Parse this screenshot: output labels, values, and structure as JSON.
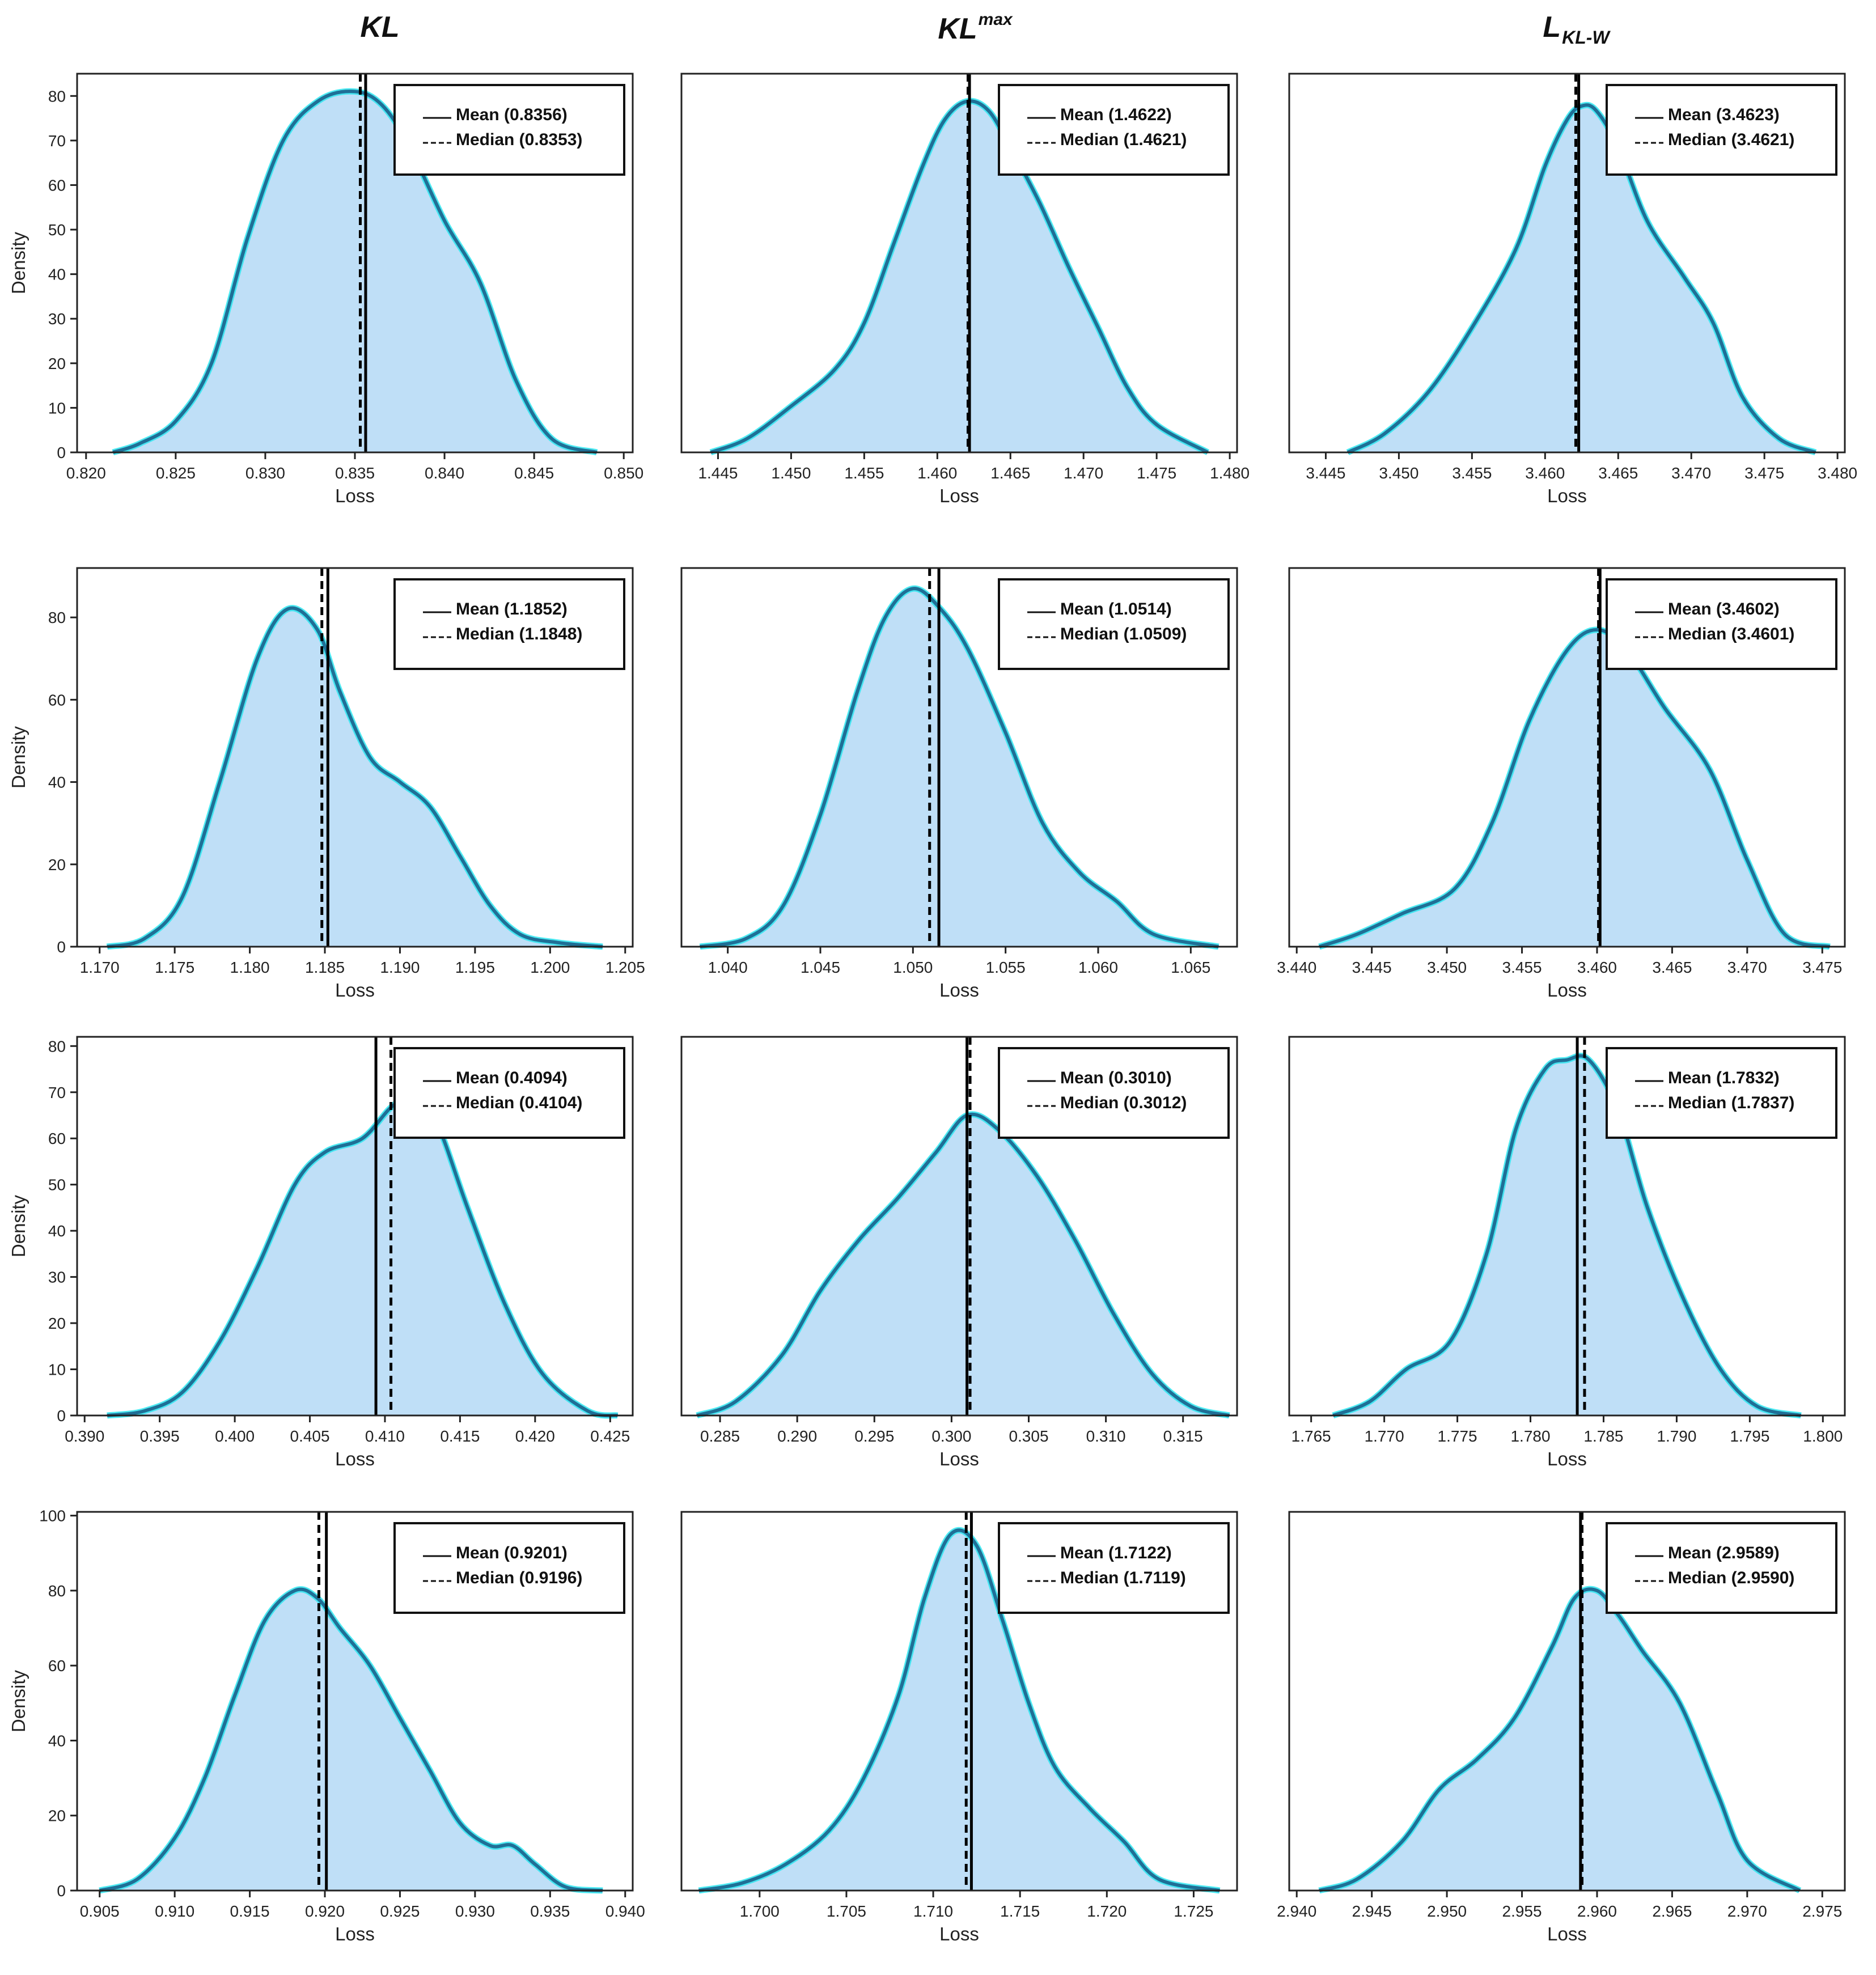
{
  "column_titles": [
    {
      "main": "KL",
      "sup": "",
      "sub": ""
    },
    {
      "main": "KL",
      "sup": "max",
      "sub": ""
    },
    {
      "main": "L",
      "sup": "",
      "sub": "KL-W"
    }
  ],
  "colors": {
    "fill": "#bfdff7",
    "curve": "#1f6f96",
    "curve_glow": "#2ee6f0",
    "mean_line": "#000000",
    "median_line": "#000000",
    "inner_line": "#1428c8"
  },
  "chart_data": [
    {
      "type": "area",
      "row": 0,
      "col": 0,
      "title": "KL",
      "xlabel": "Loss",
      "ylabel": "Density",
      "xlim": [
        0.8195,
        0.8505
      ],
      "ylim": [
        0,
        85
      ],
      "xticks": [
        0.82,
        0.825,
        0.83,
        0.835,
        0.84,
        0.845,
        0.85
      ],
      "xtick_labels": [
        "0.820",
        "0.825",
        "0.830",
        "0.835",
        "0.840",
        "0.845",
        "0.850"
      ],
      "yticks": [
        0,
        10,
        20,
        30,
        40,
        50,
        60,
        70,
        80
      ],
      "ytick_labels": [
        "0",
        "10",
        "20",
        "30",
        "40",
        "50",
        "60",
        "70",
        "80"
      ],
      "mean": 0.8356,
      "median": 0.8353,
      "legend": {
        "mean_label": "Mean (0.8356)",
        "median_label": "Median (0.8353)"
      },
      "x": [
        0.8215,
        0.823,
        0.825,
        0.827,
        0.829,
        0.831,
        0.833,
        0.835,
        0.8365,
        0.838,
        0.84,
        0.842,
        0.844,
        0.846,
        0.8485
      ],
      "y": [
        0,
        2,
        7,
        20,
        48,
        70,
        79,
        81,
        78,
        69,
        52,
        38,
        16,
        3,
        0
      ]
    },
    {
      "type": "area",
      "row": 0,
      "col": 1,
      "title": "KLmax",
      "xlabel": "Loss",
      "ylabel": "",
      "xlim": [
        1.4425,
        1.4805
      ],
      "ylim": [
        0,
        82
      ],
      "xticks": [
        1.445,
        1.45,
        1.455,
        1.46,
        1.465,
        1.47,
        1.475,
        1.48
      ],
      "xtick_labels": [
        "1.445",
        "1.450",
        "1.455",
        "1.460",
        "1.465",
        "1.470",
        "1.475",
        "1.480"
      ],
      "yticks": [],
      "ytick_labels": [],
      "mean": 1.4622,
      "median": 1.4621,
      "legend": {
        "mean_label": "Mean (1.4622)",
        "median_label": "Median (1.4621)"
      },
      "x": [
        1.4445,
        1.447,
        1.45,
        1.453,
        1.455,
        1.457,
        1.459,
        1.4605,
        1.462,
        1.4635,
        1.465,
        1.467,
        1.469,
        1.471,
        1.473,
        1.475,
        1.4785
      ],
      "y": [
        0,
        3,
        10,
        18,
        28,
        45,
        62,
        72,
        76,
        74,
        66,
        54,
        40,
        27,
        14,
        6,
        0
      ]
    },
    {
      "type": "area",
      "row": 0,
      "col": 2,
      "title": "LKL-W",
      "xlabel": "Loss",
      "ylabel": "",
      "xlim": [
        3.4425,
        3.4805
      ],
      "ylim": [
        0,
        82
      ],
      "xticks": [
        3.445,
        3.45,
        3.455,
        3.46,
        3.465,
        3.47,
        3.475,
        3.48
      ],
      "xtick_labels": [
        "3.445",
        "3.450",
        "3.455",
        "3.460",
        "3.465",
        "3.470",
        "3.475",
        "3.480"
      ],
      "yticks": [],
      "ytick_labels": [],
      "mean": 3.4623,
      "median": 3.4621,
      "legend": {
        "mean_label": "Mean (3.4623)",
        "median_label": "Median (3.4621)"
      },
      "x": [
        3.4465,
        3.449,
        3.452,
        3.455,
        3.458,
        3.46,
        3.4615,
        3.4625,
        3.4635,
        3.465,
        3.467,
        3.4695,
        3.4715,
        3.4735,
        3.476,
        3.4785
      ],
      "y": [
        0,
        4,
        13,
        27,
        44,
        62,
        72,
        75,
        74,
        66,
        50,
        38,
        28,
        12,
        3,
        0
      ]
    },
    {
      "type": "area",
      "row": 1,
      "col": 0,
      "title": "",
      "xlabel": "Loss",
      "ylabel": "Density",
      "xlim": [
        1.1685,
        1.2055
      ],
      "ylim": [
        0,
        92
      ],
      "xticks": [
        1.17,
        1.175,
        1.18,
        1.185,
        1.19,
        1.195,
        1.2,
        1.205
      ],
      "xtick_labels": [
        "1.170",
        "1.175",
        "1.180",
        "1.185",
        "1.190",
        "1.195",
        "1.200",
        "1.205"
      ],
      "yticks": [
        0,
        20,
        40,
        60,
        80
      ],
      "ytick_labels": [
        "0",
        "20",
        "40",
        "60",
        "80"
      ],
      "mean": 1.1852,
      "median": 1.1848,
      "legend": {
        "mean_label": "Mean (1.1852)",
        "median_label": "Median (1.1848)"
      },
      "x": [
        1.1705,
        1.173,
        1.1755,
        1.178,
        1.1805,
        1.1825,
        1.1845,
        1.186,
        1.188,
        1.19,
        1.192,
        1.194,
        1.196,
        1.198,
        1.2005,
        1.2035
      ],
      "y": [
        0,
        2,
        12,
        40,
        70,
        82,
        77,
        62,
        46,
        40,
        34,
        22,
        10,
        3,
        1,
        0
      ]
    },
    {
      "type": "area",
      "row": 1,
      "col": 1,
      "title": "",
      "xlabel": "Loss",
      "ylabel": "",
      "xlim": [
        1.0375,
        1.0675
      ],
      "ylim": [
        0,
        92
      ],
      "xticks": [
        1.04,
        1.045,
        1.05,
        1.055,
        1.06,
        1.065
      ],
      "xtick_labels": [
        "1.040",
        "1.045",
        "1.050",
        "1.055",
        "1.060",
        "1.065"
      ],
      "yticks": [],
      "ytick_labels": [],
      "mean": 1.0514,
      "median": 1.0509,
      "legend": {
        "mean_label": "Mean (1.0514)",
        "median_label": "Median (1.0509)"
      },
      "x": [
        1.0385,
        1.041,
        1.043,
        1.045,
        1.047,
        1.0485,
        1.05,
        1.0515,
        1.053,
        1.055,
        1.057,
        1.059,
        1.061,
        1.063,
        1.0665
      ],
      "y": [
        0,
        2,
        10,
        32,
        62,
        80,
        87,
        82,
        72,
        52,
        30,
        18,
        11,
        3,
        0
      ]
    },
    {
      "type": "area",
      "row": 1,
      "col": 2,
      "title": "",
      "xlabel": "Loss",
      "ylabel": "",
      "xlim": [
        3.4395,
        3.4765
      ],
      "ylim": [
        0,
        92
      ],
      "xticks": [
        3.44,
        3.445,
        3.45,
        3.455,
        3.46,
        3.465,
        3.47,
        3.475
      ],
      "xtick_labels": [
        "3.440",
        "3.445",
        "3.450",
        "3.455",
        "3.460",
        "3.465",
        "3.470",
        "3.475"
      ],
      "yticks": [],
      "ytick_labels": [],
      "mean": 3.4602,
      "median": 3.4601,
      "legend": {
        "mean_label": "Mean (3.4602)",
        "median_label": "Median (3.4601)"
      },
      "x": [
        3.4415,
        3.444,
        3.447,
        3.4505,
        3.453,
        3.4555,
        3.458,
        3.46,
        3.462,
        3.4645,
        3.4675,
        3.47,
        3.4725,
        3.4755
      ],
      "y": [
        0,
        3,
        8,
        14,
        30,
        55,
        72,
        77,
        72,
        58,
        43,
        21,
        3,
        0
      ]
    },
    {
      "type": "area",
      "row": 2,
      "col": 0,
      "title": "",
      "xlabel": "Loss",
      "ylabel": "Density",
      "xlim": [
        0.3895,
        0.4265
      ],
      "ylim": [
        0,
        82
      ],
      "xticks": [
        0.39,
        0.395,
        0.4,
        0.405,
        0.41,
        0.415,
        0.42,
        0.425
      ],
      "xtick_labels": [
        "0.390",
        "0.395",
        "0.400",
        "0.405",
        "0.410",
        "0.415",
        "0.420",
        "0.425"
      ],
      "yticks": [
        0,
        10,
        20,
        30,
        40,
        50,
        60,
        70,
        80
      ],
      "ytick_labels": [
        "0",
        "10",
        "20",
        "30",
        "40",
        "50",
        "60",
        "70",
        "80"
      ],
      "mean": 0.4094,
      "median": 0.4104,
      "legend": {
        "mean_label": "Mean (0.4094)",
        "median_label": "Median (0.4104)"
      },
      "x": [
        0.3915,
        0.394,
        0.3965,
        0.399,
        0.4015,
        0.404,
        0.406,
        0.4085,
        0.4105,
        0.412,
        0.4135,
        0.4155,
        0.418,
        0.4205,
        0.4235,
        0.4255
      ],
      "y": [
        0,
        1,
        5,
        16,
        32,
        50,
        57,
        60,
        67,
        69,
        63,
        45,
        24,
        9,
        1,
        0
      ]
    },
    {
      "type": "area",
      "row": 2,
      "col": 1,
      "title": "",
      "xlabel": "Loss",
      "ylabel": "",
      "xlim": [
        0.2825,
        0.3185
      ],
      "ylim": [
        0,
        82
      ],
      "xticks": [
        0.285,
        0.29,
        0.295,
        0.3,
        0.305,
        0.31,
        0.315
      ],
      "xtick_labels": [
        "0.285",
        "0.290",
        "0.295",
        "0.300",
        "0.305",
        "0.310",
        "0.315"
      ],
      "yticks": [],
      "ytick_labels": [],
      "mean": 0.301,
      "median": 0.3012,
      "legend": {
        "mean_label": "Mean (0.3010)",
        "median_label": "Median (0.3012)"
      },
      "x": [
        0.2835,
        0.286,
        0.289,
        0.2915,
        0.294,
        0.2965,
        0.299,
        0.301,
        0.303,
        0.3055,
        0.308,
        0.3105,
        0.313,
        0.3155,
        0.318
      ],
      "y": [
        0,
        3,
        13,
        27,
        38,
        47,
        57,
        65,
        62,
        52,
        38,
        22,
        9,
        2,
        0
      ]
    },
    {
      "type": "area",
      "row": 2,
      "col": 2,
      "title": "",
      "xlabel": "Loss",
      "ylabel": "",
      "xlim": [
        1.7635,
        1.8015
      ],
      "ylim": [
        0,
        82
      ],
      "xticks": [
        1.765,
        1.77,
        1.775,
        1.78,
        1.785,
        1.79,
        1.795,
        1.8
      ],
      "xtick_labels": [
        "1.765",
        "1.770",
        "1.775",
        "1.780",
        "1.785",
        "1.790",
        "1.795",
        "1.800"
      ],
      "yticks": [],
      "ytick_labels": [],
      "mean": 1.7832,
      "median": 1.7837,
      "legend": {
        "mean_label": "Mean (1.7832)",
        "median_label": "Median (1.7837)"
      },
      "x": [
        1.7665,
        1.769,
        1.7715,
        1.7745,
        1.777,
        1.779,
        1.781,
        1.7825,
        1.784,
        1.786,
        1.788,
        1.7905,
        1.793,
        1.7955,
        1.7985
      ],
      "y": [
        0,
        3,
        10,
        16,
        35,
        62,
        75,
        77,
        77,
        66,
        45,
        25,
        10,
        2,
        0
      ]
    },
    {
      "type": "area",
      "row": 3,
      "col": 0,
      "title": "",
      "xlabel": "Loss",
      "ylabel": "Density",
      "xlim": [
        0.9035,
        0.9405
      ],
      "ylim": [
        0,
        101
      ],
      "xticks": [
        0.905,
        0.91,
        0.915,
        0.92,
        0.925,
        0.93,
        0.935,
        0.94
      ],
      "xtick_labels": [
        "0.905",
        "0.910",
        "0.915",
        "0.920",
        "0.925",
        "0.930",
        "0.935",
        "0.940"
      ],
      "yticks": [
        0,
        20,
        40,
        60,
        80,
        100
      ],
      "ytick_labels": [
        "0",
        "20",
        "40",
        "60",
        "80",
        "100"
      ],
      "mean": 0.9201,
      "median": 0.9196,
      "legend": {
        "mean_label": "Mean (0.9201)",
        "median_label": "Median (0.9196)"
      },
      "x": [
        0.905,
        0.9075,
        0.91,
        0.912,
        0.914,
        0.916,
        0.918,
        0.9195,
        0.921,
        0.923,
        0.925,
        0.927,
        0.929,
        0.931,
        0.9325,
        0.934,
        0.936,
        0.9385
      ],
      "y": [
        0,
        3,
        14,
        30,
        52,
        72,
        80,
        78,
        70,
        60,
        46,
        32,
        18,
        12,
        12,
        7,
        1,
        0
      ]
    },
    {
      "type": "area",
      "row": 3,
      "col": 1,
      "title": "",
      "xlabel": "Loss",
      "ylabel": "",
      "xlim": [
        1.6955,
        1.7275
      ],
      "ylim": [
        0,
        101
      ],
      "xticks": [
        1.7,
        1.705,
        1.71,
        1.715,
        1.72,
        1.725
      ],
      "xtick_labels": [
        "1.700",
        "1.705",
        "1.710",
        "1.715",
        "1.720",
        "1.725"
      ],
      "yticks": [],
      "ytick_labels": [],
      "mean": 1.7122,
      "median": 1.7119,
      "legend": {
        "mean_label": "Mean (1.7122)",
        "median_label": "Median (1.7119)"
      },
      "x": [
        1.6965,
        1.699,
        1.7015,
        1.704,
        1.706,
        1.708,
        1.7095,
        1.711,
        1.7125,
        1.714,
        1.7155,
        1.717,
        1.719,
        1.721,
        1.723,
        1.7265
      ],
      "y": [
        0,
        2,
        7,
        16,
        30,
        52,
        78,
        95,
        92,
        72,
        50,
        33,
        22,
        13,
        3,
        0
      ]
    },
    {
      "type": "area",
      "row": 3,
      "col": 2,
      "title": "",
      "xlabel": "Loss",
      "ylabel": "",
      "xlim": [
        2.9395,
        2.9765
      ],
      "ylim": [
        0,
        101
      ],
      "xticks": [
        2.94,
        2.945,
        2.95,
        2.955,
        2.96,
        2.965,
        2.97,
        2.975
      ],
      "xtick_labels": [
        "2.940",
        "2.945",
        "2.950",
        "2.955",
        "2.960",
        "2.965",
        "2.970",
        "2.975"
      ],
      "yticks": [],
      "ytick_labels": [],
      "mean": 2.9589,
      "median": 2.959,
      "legend": {
        "mean_label": "Mean (2.9589)",
        "median_label": "Median (2.9590)"
      },
      "x": [
        2.9415,
        2.944,
        2.947,
        2.9495,
        2.952,
        2.9545,
        2.957,
        2.9585,
        2.96,
        2.9615,
        2.963,
        2.9655,
        2.968,
        2.97,
        2.9735
      ],
      "y": [
        0,
        3,
        13,
        27,
        35,
        46,
        65,
        78,
        80,
        73,
        64,
        50,
        26,
        8,
        0
      ]
    }
  ]
}
